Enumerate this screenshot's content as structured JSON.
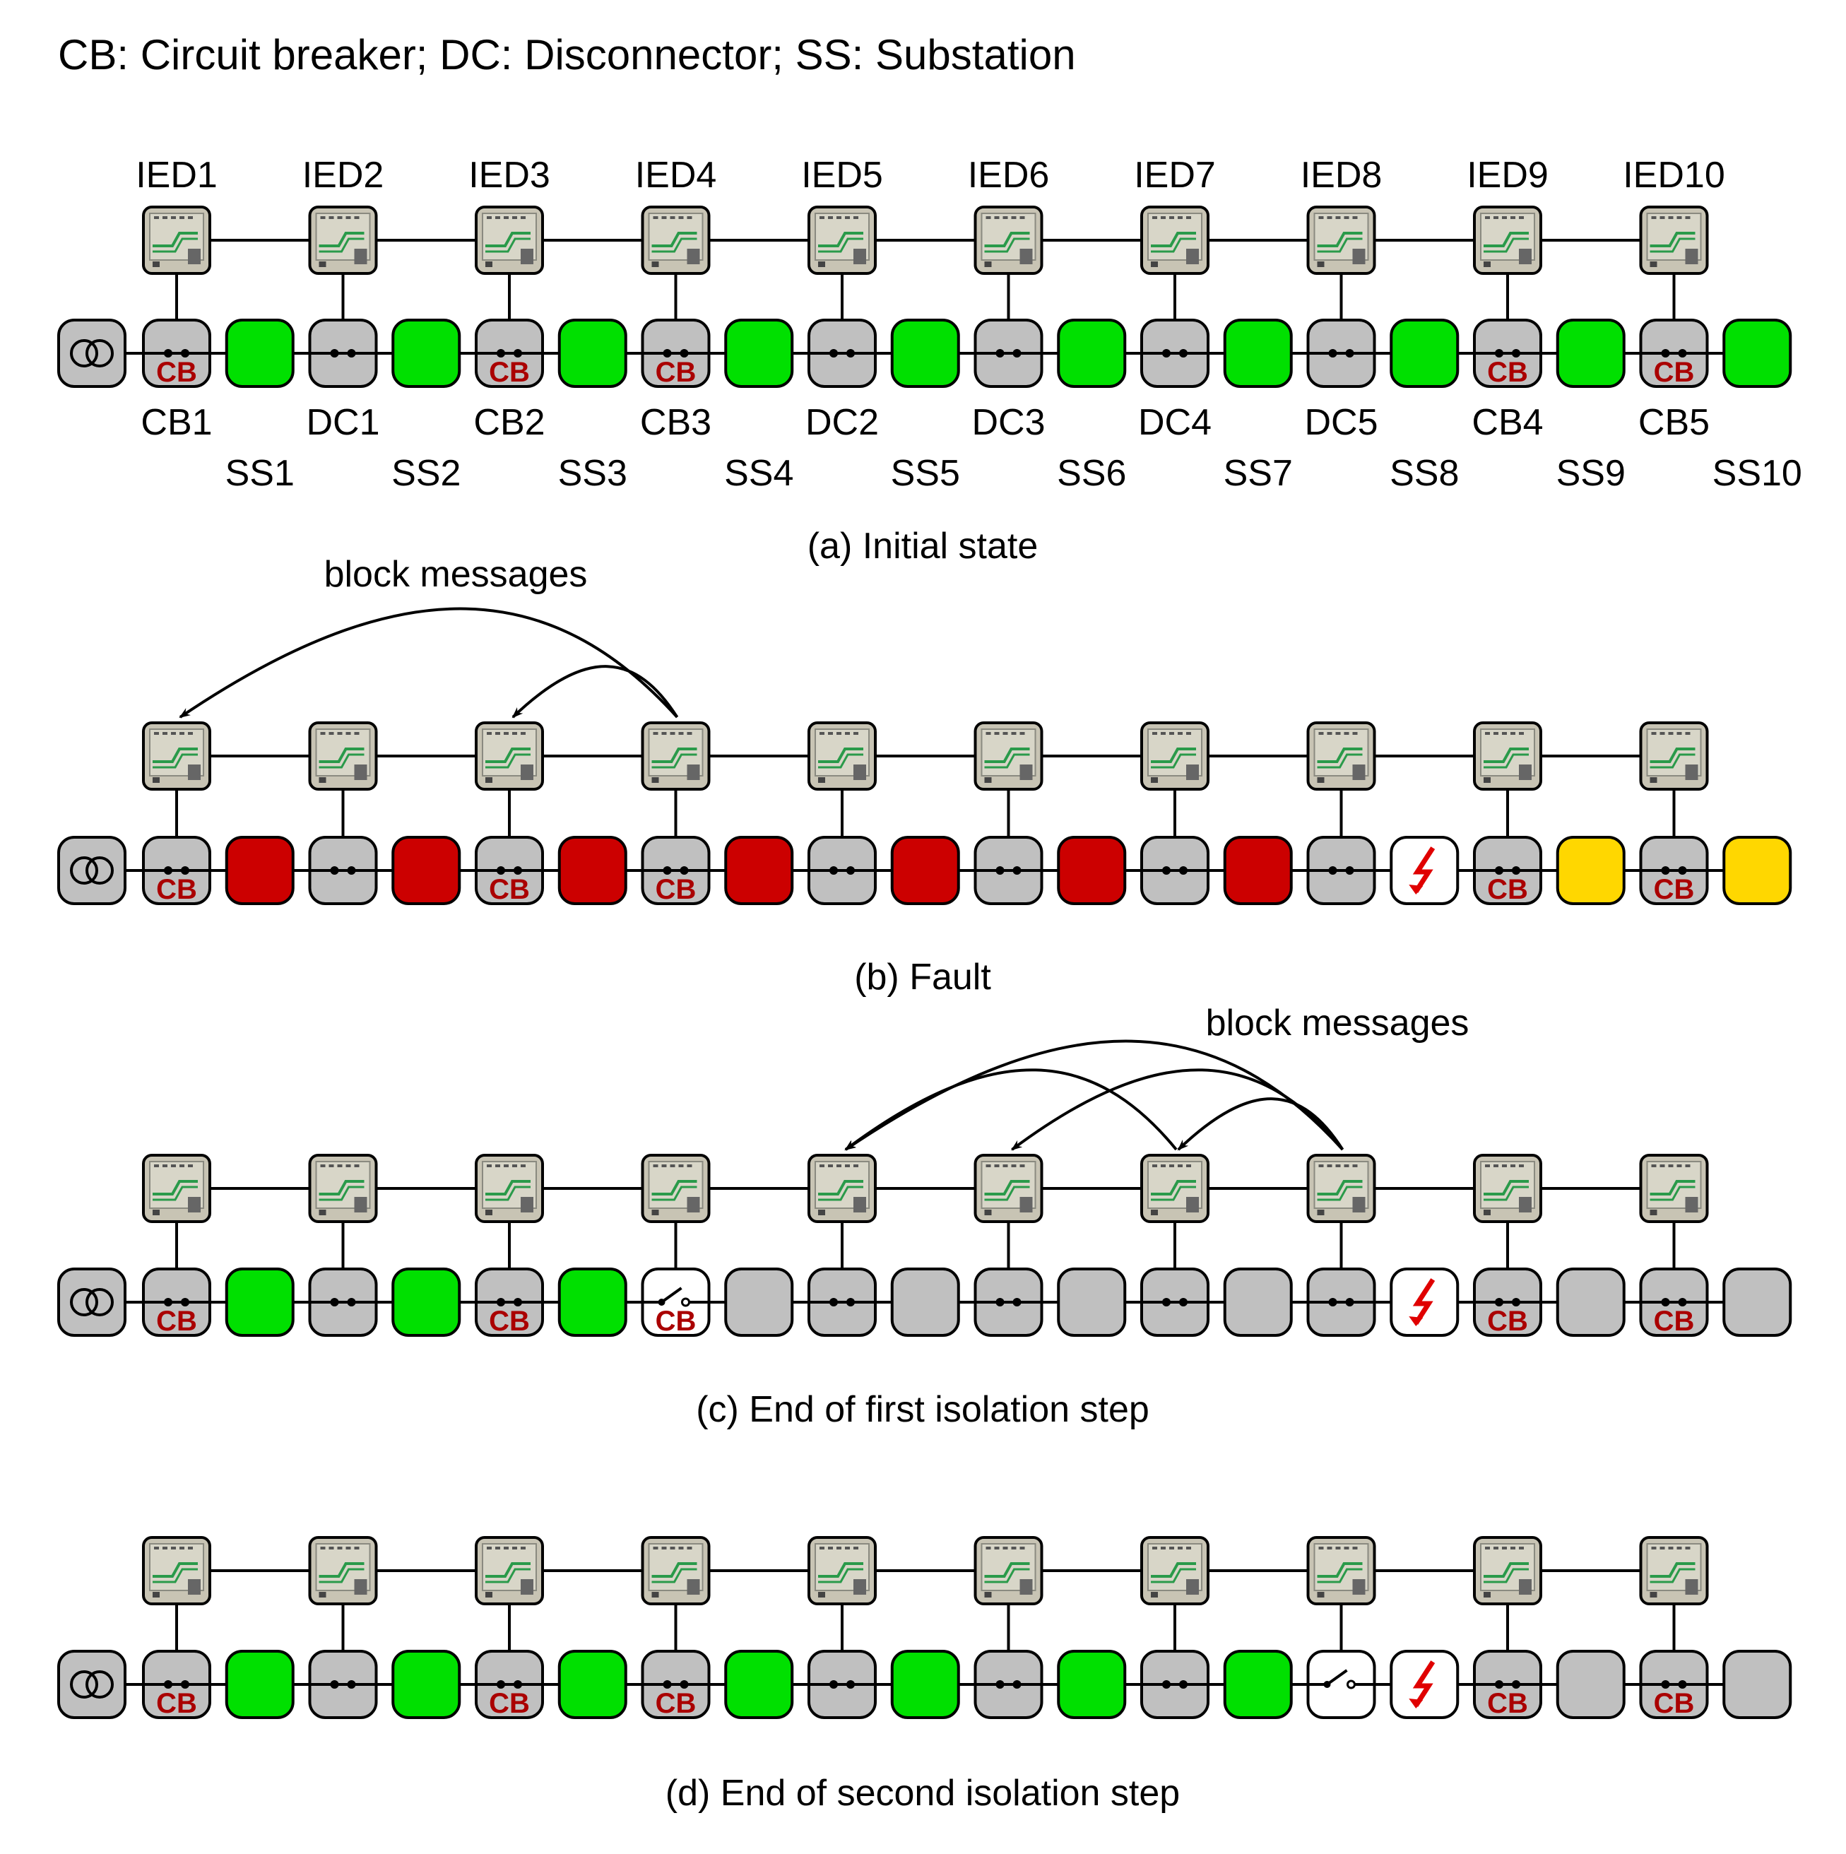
{
  "legend": "CB: Circuit breaker; DC: Disconnector; SS: Substation",
  "ied_labels": [
    "IED1",
    "IED2",
    "IED3",
    "IED4",
    "IED5",
    "IED6",
    "IED7",
    "IED8",
    "IED9",
    "IED10"
  ],
  "switch_labels": [
    "CB1",
    "DC1",
    "CB2",
    "CB3",
    "DC2",
    "DC3",
    "DC4",
    "DC5",
    "CB4",
    "CB5"
  ],
  "substation_labels": [
    "SS1",
    "SS2",
    "SS3",
    "SS4",
    "SS5",
    "SS6",
    "SS7",
    "SS8",
    "SS9",
    "SS10"
  ],
  "switch_types": [
    "CB",
    "DC",
    "CB",
    "CB",
    "DC",
    "DC",
    "DC",
    "DC",
    "CB",
    "CB"
  ],
  "switch_inline_text": "CB",
  "colors": {
    "energized": "#00e000",
    "blocked": "#cc0000",
    "warning": "#ffd700",
    "de_energized": "#c0c0c0",
    "faulted_bg": "#ffffff",
    "fault_symbol": "#e00000",
    "cb_text": "#aa0000"
  },
  "panels": [
    {
      "caption": "(a) Initial state",
      "show_labels": true,
      "substations": [
        "energized",
        "energized",
        "energized",
        "energized",
        "energized",
        "energized",
        "energized",
        "energized",
        "energized",
        "energized"
      ],
      "switches": [
        "closed",
        "closed",
        "closed",
        "closed",
        "closed",
        "closed",
        "closed",
        "closed",
        "closed",
        "closed"
      ],
      "arrow_label": "",
      "arrows": []
    },
    {
      "caption": "(b) Fault",
      "show_labels": false,
      "substations": [
        "blocked",
        "blocked",
        "blocked",
        "blocked",
        "blocked",
        "blocked",
        "blocked",
        "faulted",
        "warning",
        "warning"
      ],
      "switches": [
        "closed",
        "closed",
        "closed",
        "closed",
        "closed",
        "closed",
        "closed",
        "closed",
        "closed",
        "closed"
      ],
      "arrow_label": "block messages",
      "arrows": [
        {
          "from": 4,
          "to": 1
        },
        {
          "from": 4,
          "to": 3
        }
      ]
    },
    {
      "caption": "(c) End of first isolation step",
      "show_labels": false,
      "substations": [
        "energized",
        "energized",
        "energized",
        "de_energized",
        "de_energized",
        "de_energized",
        "de_energized",
        "faulted",
        "de_energized",
        "de_energized"
      ],
      "switches": [
        "closed",
        "closed",
        "closed",
        "open",
        "closed",
        "closed",
        "closed",
        "closed",
        "closed",
        "closed"
      ],
      "arrow_label": "block messages",
      "arrows": [
        {
          "from": 8,
          "to": 5
        },
        {
          "from": 7,
          "to": 5
        },
        {
          "from": 8,
          "to": 6
        },
        {
          "from": 8,
          "to": 7
        }
      ]
    },
    {
      "caption": "(d) End of second isolation step",
      "show_labels": false,
      "substations": [
        "energized",
        "energized",
        "energized",
        "energized",
        "energized",
        "energized",
        "energized",
        "faulted",
        "de_energized",
        "de_energized"
      ],
      "switches": [
        "closed",
        "closed",
        "closed",
        "closed",
        "closed",
        "closed",
        "closed",
        "open",
        "closed",
        "closed"
      ],
      "arrow_label": "",
      "arrows": []
    }
  ]
}
